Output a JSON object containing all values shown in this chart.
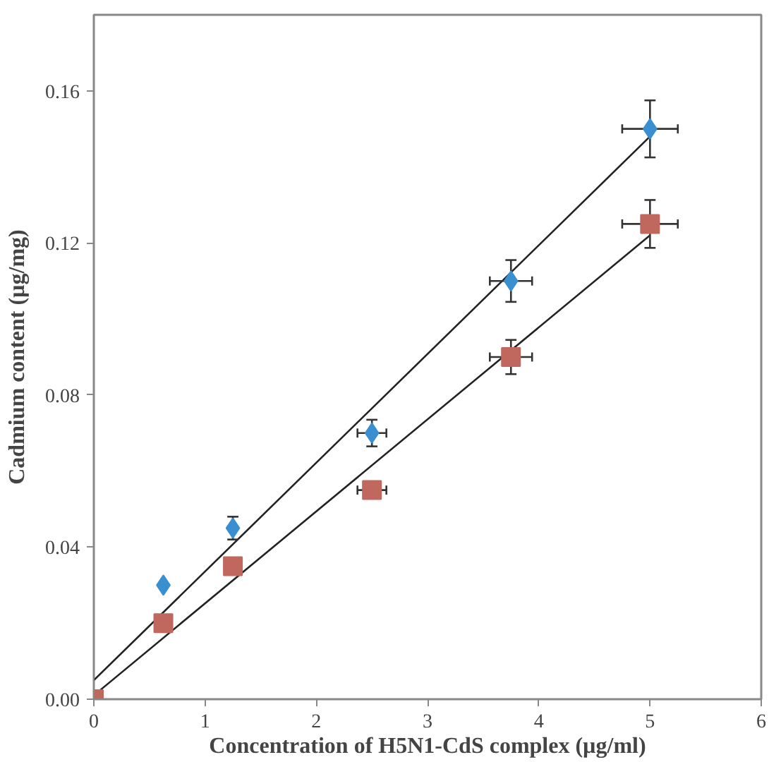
{
  "chart_data": {
    "type": "scatter",
    "xlabel": "Concentration of H5N1-CdS complex (µg/ml)",
    "ylabel": "Cadmium content (µg/mg)",
    "xlim": [
      0,
      6
    ],
    "xticks": [
      0,
      1,
      2,
      3,
      4,
      5,
      6
    ],
    "ylim": [
      0,
      0.18
    ],
    "yticks": [
      {
        "value": 0,
        "label": "0.00"
      },
      {
        "value": 0.04,
        "label": "0.04"
      },
      {
        "value": 0.08,
        "label": "0.08"
      },
      {
        "value": 0.12,
        "label": "0.12"
      },
      {
        "value": 0.16,
        "label": "0.16"
      }
    ],
    "grid": false,
    "series": [
      {
        "type": "line",
        "color": "#222222",
        "x": [
          0,
          5
        ],
        "values": [
          0.005,
          0.148
        ]
      },
      {
        "type": "line",
        "color": "#222222",
        "x": [
          0,
          5
        ],
        "values": [
          0.001,
          0.122
        ]
      },
      {
        "marker": "diamond",
        "color": "#3a8fd0",
        "x": [
          0.625,
          1.25,
          2.5,
          3.75,
          5
        ],
        "values": [
          0.03,
          0.045,
          0.07,
          0.11,
          0.15
        ],
        "errors": [
          null,
          0.003,
          0.0035,
          0.0055,
          0.0075
        ],
        "xerrors": [
          null,
          null,
          0.13,
          0.19,
          0.25
        ]
      },
      {
        "marker": "square",
        "color": "#c0675e",
        "x": [
          0,
          0.625,
          1.25,
          2.5,
          3.75,
          5
        ],
        "values": [
          0,
          0.02,
          0.035,
          0.055,
          0.09,
          0.125
        ],
        "errors": [
          null,
          null,
          null,
          null,
          0.0045,
          0.0063
        ],
        "xerrors": [
          null,
          null,
          null,
          0.13,
          0.19,
          0.25
        ]
      }
    ]
  }
}
